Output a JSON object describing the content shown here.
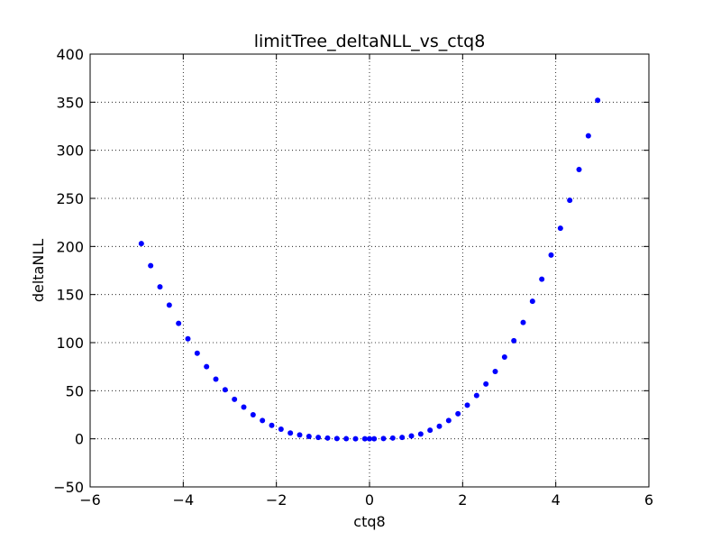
{
  "chart_data": {
    "type": "scatter",
    "title": "limitTree_deltaNLL_vs_ctq8",
    "xlabel": "ctq8",
    "ylabel": "deltaNLL",
    "xlim": [
      -6,
      6
    ],
    "ylim": [
      -50,
      400
    ],
    "xticks": [
      -6,
      -4,
      -2,
      0,
      2,
      4,
      6
    ],
    "yticks": [
      -50,
      0,
      50,
      100,
      150,
      200,
      250,
      300,
      350,
      400
    ],
    "xtick_labels": [
      "−6",
      "−4",
      "−2",
      "0",
      "2",
      "4",
      "6"
    ],
    "ytick_labels": [
      "−50",
      "0",
      "50",
      "100",
      "150",
      "200",
      "250",
      "300",
      "350",
      "400"
    ],
    "grid": true,
    "marker_color": "#0000ff",
    "series": [
      {
        "x": [
          -4.9,
          -4.7,
          -4.5,
          -4.3,
          -4.1,
          -3.9,
          -3.7,
          -3.5,
          -3.3,
          -3.1,
          -2.9,
          -2.7,
          -2.5,
          -2.3,
          -2.1,
          -1.9,
          -1.7,
          -1.5,
          -1.3,
          -1.1,
          -0.9,
          -0.7,
          -0.5,
          -0.3,
          -0.1,
          0.0,
          0.1,
          0.3,
          0.5,
          0.7,
          0.9,
          1.1,
          1.3,
          1.5,
          1.7,
          1.9,
          2.1,
          2.3,
          2.5,
          2.7,
          2.9,
          3.1,
          3.3,
          3.5,
          3.7,
          3.9,
          4.1,
          4.3,
          4.5,
          4.7,
          4.9
        ],
        "y": [
          203,
          180,
          158,
          139,
          120,
          104,
          89,
          75,
          62,
          51,
          41,
          33,
          25,
          19,
          14,
          10,
          6,
          4,
          2.5,
          1.5,
          0.8,
          0.3,
          0.1,
          0.05,
          0,
          0,
          0.05,
          0.3,
          0.8,
          1.5,
          3,
          5,
          9,
          13,
          19,
          26,
          35,
          45,
          57,
          70,
          85,
          102,
          121,
          143,
          166,
          191,
          219,
          248,
          280,
          315,
          352
        ]
      }
    ]
  }
}
